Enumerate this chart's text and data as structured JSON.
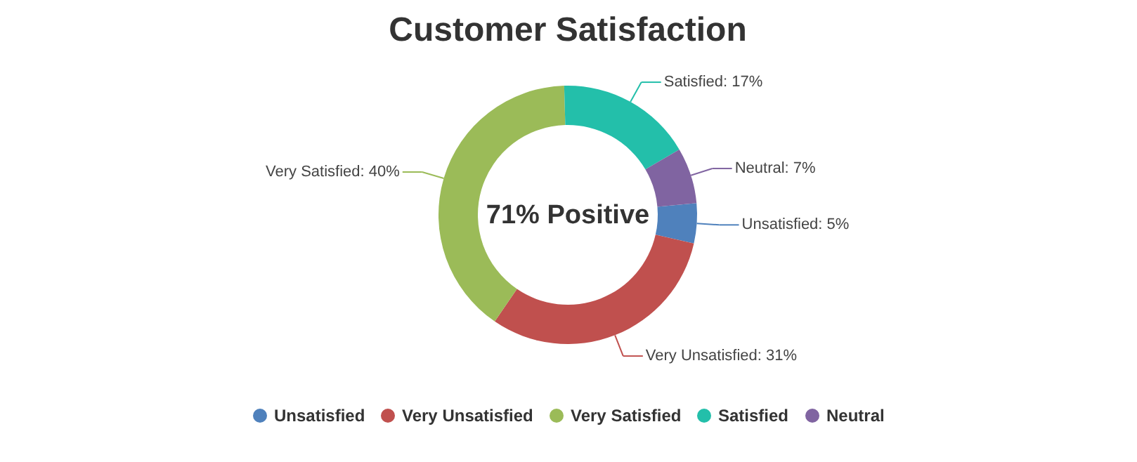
{
  "chart_data": {
    "type": "donut",
    "title": "Customer Satisfaction",
    "categories": [
      "Unsatisfied",
      "Very Unsatisfied",
      "Very Satisfied",
      "Satisfied",
      "Neutral"
    ],
    "values": [
      5,
      31,
      40,
      17,
      7
    ],
    "colors": [
      "#4f81bc",
      "#c0504e",
      "#9bbb58",
      "#23bfaa",
      "#8064a1"
    ],
    "value_labels": [
      "Unsatisfied: 5%",
      "Very Unsatisfied: 31%",
      "Very Satisfied: 40%",
      "Satisfied: 17%",
      "Neutral: 7%"
    ],
    "annotations": [
      "71% Positive"
    ],
    "legend": "bottom"
  }
}
